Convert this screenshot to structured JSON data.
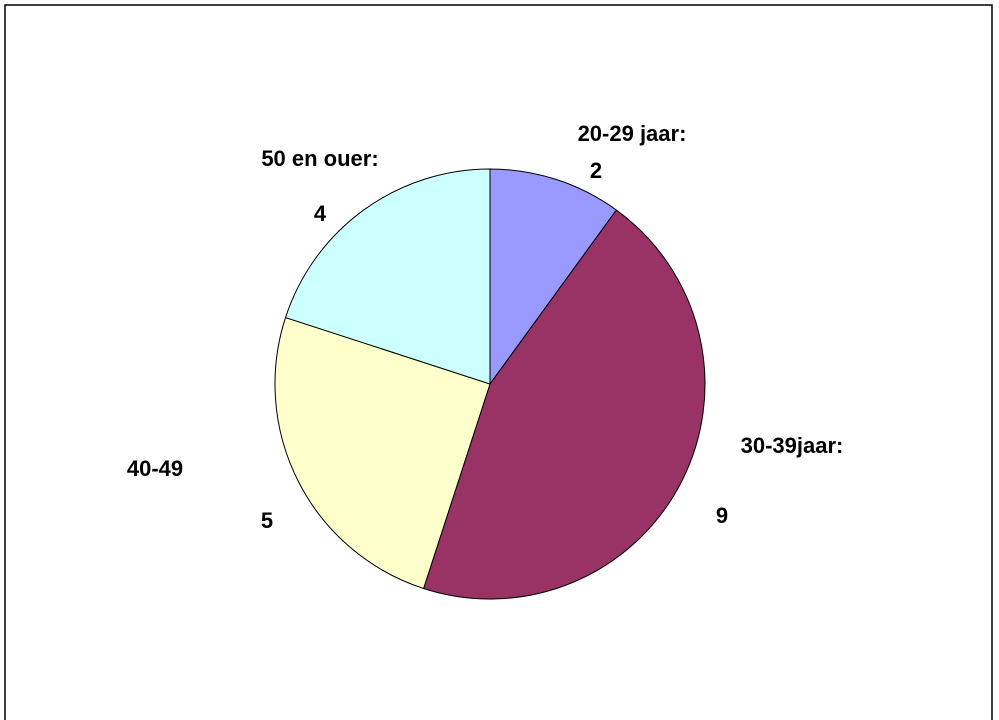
{
  "chart_data": {
    "type": "pie",
    "categories": [
      "20-29 jaar:",
      "30-39jaar:",
      "40-49",
      "50 en ouer:"
    ],
    "values": [
      2,
      9,
      5,
      4
    ],
    "colors": [
      "#9999ff",
      "#993366",
      "#ffffcc",
      "#ccffff"
    ]
  }
}
